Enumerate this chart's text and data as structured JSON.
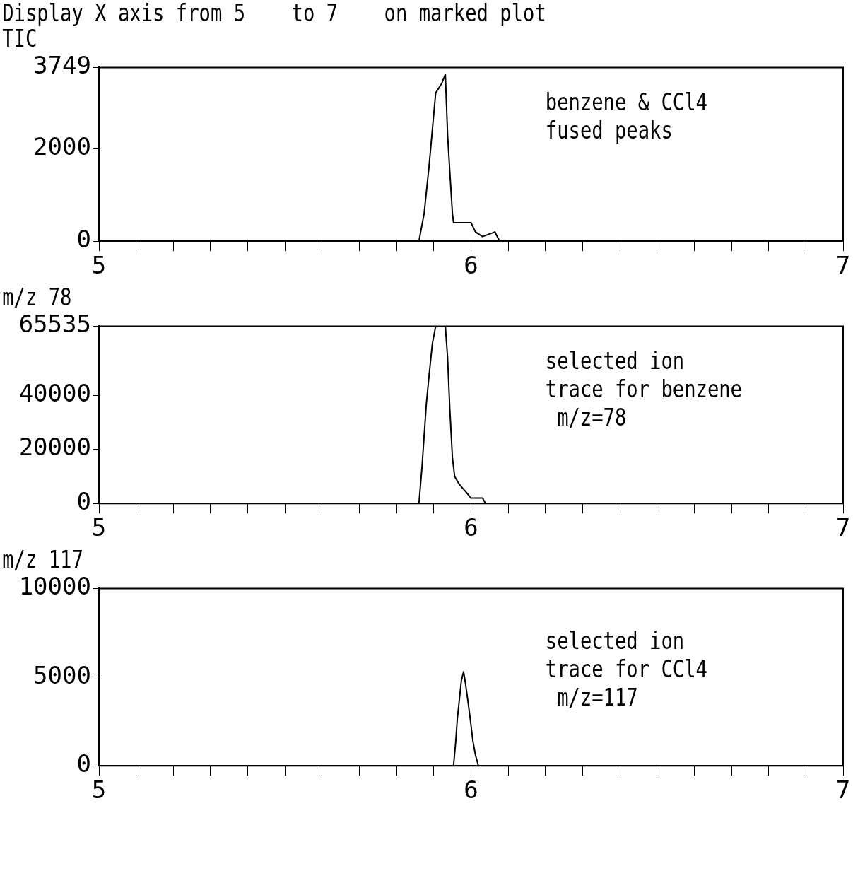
{
  "chart_data": [
    {
      "type": "line",
      "title": "Display X axis from 5    to 7    on marked plot",
      "subtitle": "TIC",
      "xlim": [
        5,
        7
      ],
      "xticks": [
        5,
        {
          "value": 5.1,
          "label": null
        },
        {
          "value": 5.2,
          "label": null
        },
        {
          "value": 5.3,
          "label": null
        },
        {
          "value": 5.4,
          "label": null
        },
        {
          "value": 5.5,
          "label": null
        },
        {
          "value": 5.6,
          "label": null
        },
        {
          "value": 5.7,
          "label": null
        },
        {
          "value": 5.8,
          "label": null
        },
        {
          "value": 5.9,
          "label": null
        },
        6,
        {
          "value": 6.1,
          "label": null
        },
        {
          "value": 6.2,
          "label": null
        },
        {
          "value": 6.3,
          "label": null
        },
        {
          "value": 6.4,
          "label": null
        },
        {
          "value": 6.5,
          "label": null
        },
        {
          "value": 6.6,
          "label": null
        },
        {
          "value": 6.7,
          "label": null
        },
        {
          "value": 6.8,
          "label": null
        },
        {
          "value": 6.9,
          "label": null
        },
        7
      ],
      "ylim": [
        0,
        3749
      ],
      "yticks": [
        0,
        2000,
        3749
      ],
      "grid": false,
      "legend": false,
      "x": [
        5,
        5.86,
        5.874,
        5.887,
        5.896,
        5.905,
        5.921,
        5.931,
        5.937,
        5.943,
        5.95,
        5.953,
        6.0,
        6.012,
        6.031,
        6.064,
        6.077,
        7
      ],
      "series": [
        {
          "color": "#000000",
          "values": [
            0,
            0,
            600,
            1600,
            2400,
            3200,
            3400,
            3600,
            2300,
            1500,
            600,
            400,
            400,
            200,
            100,
            200,
            0,
            0
          ]
        }
      ],
      "annotations": [
        "benzene & CCl4\nfused peaks"
      ]
    },
    {
      "type": "line",
      "title": "m/z 78",
      "xlim": [
        5,
        7
      ],
      "xticks": [
        5,
        {
          "value": 5.1,
          "label": null
        },
        {
          "value": 5.2,
          "label": null
        },
        {
          "value": 5.3,
          "label": null
        },
        {
          "value": 5.4,
          "label": null
        },
        {
          "value": 5.5,
          "label": null
        },
        {
          "value": 5.6,
          "label": null
        },
        {
          "value": 5.7,
          "label": null
        },
        {
          "value": 5.8,
          "label": null
        },
        {
          "value": 5.9,
          "label": null
        },
        6,
        {
          "value": 6.1,
          "label": null
        },
        {
          "value": 6.2,
          "label": null
        },
        {
          "value": 6.3,
          "label": null
        },
        {
          "value": 6.4,
          "label": null
        },
        {
          "value": 6.5,
          "label": null
        },
        {
          "value": 6.6,
          "label": null
        },
        {
          "value": 6.7,
          "label": null
        },
        {
          "value": 6.8,
          "label": null
        },
        {
          "value": 6.9,
          "label": null
        },
        7
      ],
      "ylim": [
        0,
        65535
      ],
      "yticks": [
        0,
        20000,
        40000,
        65535
      ],
      "grid": false,
      "legend": false,
      "x": [
        5,
        5.86,
        5.868,
        5.874,
        5.88,
        5.887,
        5.896,
        5.905,
        5.931,
        5.937,
        5.943,
        5.95,
        5.956,
        5.969,
        5.988,
        6.0,
        6.031,
        6.039,
        7
      ],
      "series": [
        {
          "color": "#000000",
          "values": [
            0,
            0,
            13000,
            25000,
            37000,
            47000,
            59000,
            65535,
            65535,
            54000,
            35000,
            17000,
            10000,
            7000,
            4000,
            2000,
            2000,
            0,
            0
          ]
        }
      ],
      "annotations": [
        "selected ion\ntrace for benzene\n m/z=78"
      ]
    },
    {
      "type": "line",
      "title": "m/z 117",
      "xlim": [
        5,
        7
      ],
      "xticks": [
        5,
        {
          "value": 5.1,
          "label": null
        },
        {
          "value": 5.2,
          "label": null
        },
        {
          "value": 5.3,
          "label": null
        },
        {
          "value": 5.4,
          "label": null
        },
        {
          "value": 5.5,
          "label": null
        },
        {
          "value": 5.6,
          "label": null
        },
        {
          "value": 5.7,
          "label": null
        },
        {
          "value": 5.8,
          "label": null
        },
        {
          "value": 5.9,
          "label": null
        },
        6,
        {
          "value": 6.1,
          "label": null
        },
        {
          "value": 6.2,
          "label": null
        },
        {
          "value": 6.3,
          "label": null
        },
        {
          "value": 6.4,
          "label": null
        },
        {
          "value": 6.5,
          "label": null
        },
        {
          "value": 6.6,
          "label": null
        },
        {
          "value": 6.7,
          "label": null
        },
        {
          "value": 6.8,
          "label": null
        },
        {
          "value": 6.9,
          "label": null
        },
        7
      ],
      "ylim": [
        0,
        10000
      ],
      "yticks": [
        0,
        5000,
        10000
      ],
      "grid": false,
      "legend": false,
      "x": [
        5,
        5.953,
        5.959,
        5.963,
        5.969,
        5.974,
        5.98,
        5.984,
        5.99,
        5.997,
        6.005,
        6.012,
        6.02,
        7
      ],
      "series": [
        {
          "color": "#000000",
          "values": [
            0,
            0,
            1400,
            2600,
            3800,
            4800,
            5300,
            4800,
            3900,
            2800,
            1400,
            600,
            0,
            0
          ]
        }
      ],
      "annotations": [
        "selected ion\ntrace for CCl4\n m/z=117"
      ]
    }
  ]
}
